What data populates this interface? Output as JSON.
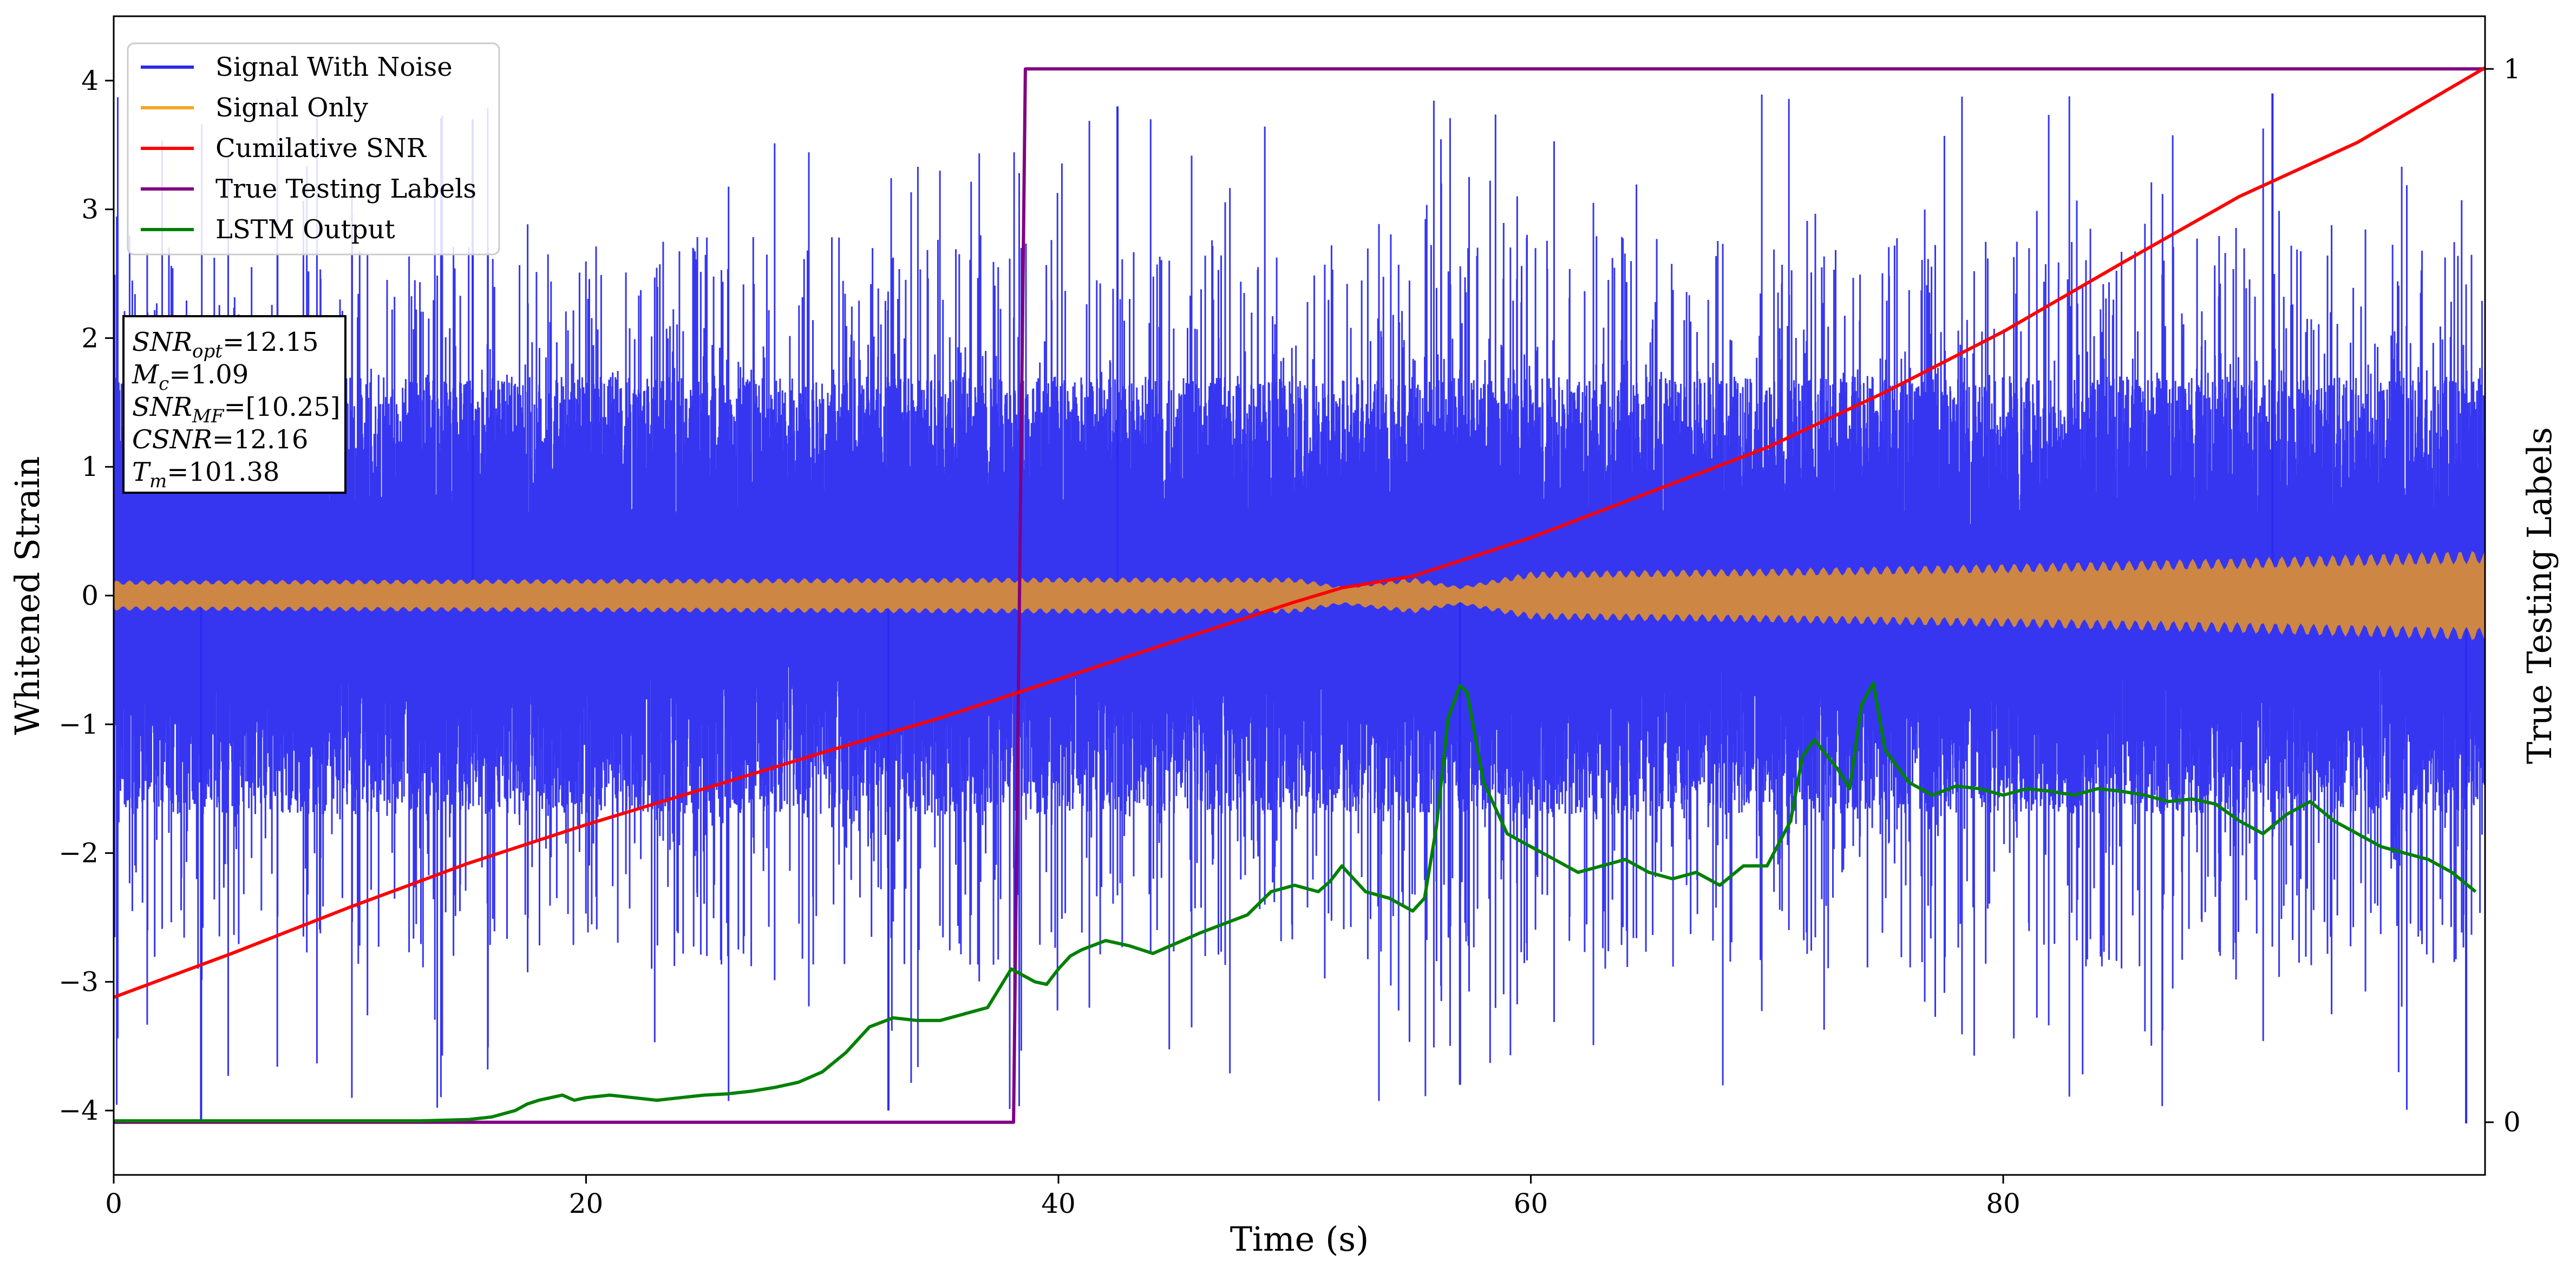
{
  "chart_data": {
    "type": "line",
    "xlabel": "Time (s)",
    "ylabel": "Whitened Strain",
    "y2label": "True Testing Labels",
    "xlim": [
      0,
      100.4
    ],
    "ylim": [
      -4.5,
      4.5
    ],
    "y2lim": [
      -0.05,
      1.05
    ],
    "x_ticks": [
      0,
      20,
      40,
      60,
      80
    ],
    "y_ticks": [
      -4,
      -3,
      -2,
      -1,
      0,
      1,
      2,
      3,
      4
    ],
    "y2_ticks": [
      0,
      1
    ],
    "grid": false,
    "legend": {
      "position": "top-left",
      "entries": [
        {
          "name": "Signal With Noise",
          "color": "#2b2bf0"
        },
        {
          "name": "Signal Only",
          "color": "#f5a623"
        },
        {
          "name": "Cumilative SNR",
          "color": "#ff0000"
        },
        {
          "name": "True Testing Labels",
          "color": "#800080"
        },
        {
          "name": "LSTM Output",
          "color": "#008000"
        }
      ]
    },
    "annotation": [
      {
        "base": "SNR",
        "sub": "opt",
        "value": "=12.15"
      },
      {
        "base": "M",
        "sub": "c",
        "value": "=1.09"
      },
      {
        "base": "SNR",
        "sub": "MF",
        "value": "=[10.25]"
      },
      {
        "base": "CSNR",
        "sub": "",
        "value": "=12.16"
      },
      {
        "base": "T",
        "sub": "m",
        "value": "=101.38"
      }
    ],
    "series": [
      {
        "name": "Signal With Noise",
        "axis": "left",
        "color": "#2b2bf0",
        "style": "noise-band",
        "x_range": [
          0,
          100.4
        ],
        "typical_range": [
          -1.7,
          1.7
        ],
        "extreme_range": [
          -4.1,
          4.0
        ]
      },
      {
        "name": "Signal Only",
        "axis": "left",
        "color": "#f5a623",
        "style": "chirp-envelope",
        "x": [
          0,
          20,
          40,
          50,
          52,
          55,
          57,
          60,
          70,
          80,
          90,
          100.4
        ],
        "amplitude": [
          0.1,
          0.11,
          0.12,
          0.12,
          0.06,
          0.12,
          0.06,
          0.16,
          0.18,
          0.21,
          0.25,
          0.3
        ]
      },
      {
        "name": "Cumilative SNR",
        "axis": "left",
        "color": "#ff0000",
        "x": [
          0,
          5,
          10,
          15,
          20,
          25,
          30,
          35,
          40,
          45,
          50,
          52,
          55,
          60,
          65,
          70,
          75,
          80,
          85,
          90,
          95,
          100.4
        ],
        "y": [
          -3.12,
          -2.78,
          -2.42,
          -2.08,
          -1.78,
          -1.5,
          -1.22,
          -0.95,
          -0.65,
          -0.35,
          -0.05,
          0.06,
          0.15,
          0.45,
          0.8,
          1.15,
          1.58,
          2.05,
          2.58,
          3.1,
          3.52,
          4.1
        ]
      },
      {
        "name": "True Testing Labels",
        "axis": "right",
        "color": "#800080",
        "x": [
          0,
          38.1,
          38.6,
          100.4
        ],
        "y": [
          0,
          0,
          1,
          1
        ]
      },
      {
        "name": "LSTM Output",
        "axis": "left",
        "color": "#008000",
        "x": [
          0,
          10,
          13,
          15,
          16,
          17,
          17.5,
          18,
          19,
          19.5,
          20,
          21,
          22,
          23,
          24,
          25,
          26,
          27,
          28,
          29,
          30,
          31,
          31.5,
          32,
          33,
          34,
          34.5,
          35,
          36,
          37,
          37.5,
          38,
          38.5,
          39,
          39.5,
          40,
          40.5,
          41,
          42,
          43,
          44,
          45,
          46,
          47,
          48,
          49,
          50,
          51,
          51.5,
          52,
          53,
          54,
          55,
          55.5,
          56,
          56.5,
          57,
          57.3,
          58,
          59,
          60,
          61,
          62,
          63,
          64,
          65,
          66,
          67,
          68,
          69,
          70,
          71,
          71.5,
          72,
          73,
          73.5,
          74,
          74.5,
          75,
          76,
          77,
          78,
          79,
          80,
          81,
          82,
          83,
          84,
          85,
          86,
          87,
          88,
          89,
          90,
          91,
          92,
          93,
          94,
          95,
          96,
          97,
          98,
          99,
          100
        ],
        "y": [
          -4.08,
          -4.08,
          -4.08,
          -4.07,
          -4.05,
          -4.0,
          -3.95,
          -3.92,
          -3.88,
          -3.92,
          -3.9,
          -3.88,
          -3.9,
          -3.92,
          -3.9,
          -3.88,
          -3.87,
          -3.85,
          -3.82,
          -3.78,
          -3.7,
          -3.55,
          -3.45,
          -3.35,
          -3.28,
          -3.3,
          -3.3,
          -3.3,
          -3.25,
          -3.2,
          -3.05,
          -2.9,
          -2.95,
          -3.0,
          -3.02,
          -2.9,
          -2.8,
          -2.75,
          -2.68,
          -2.72,
          -2.78,
          -2.7,
          -2.62,
          -2.55,
          -2.48,
          -2.3,
          -2.25,
          -2.3,
          -2.22,
          -2.1,
          -2.3,
          -2.35,
          -2.45,
          -2.35,
          -1.8,
          -0.95,
          -0.7,
          -0.75,
          -1.45,
          -1.85,
          -1.95,
          -2.05,
          -2.15,
          -2.1,
          -2.05,
          -2.15,
          -2.2,
          -2.15,
          -2.25,
          -2.1,
          -2.1,
          -1.75,
          -1.25,
          -1.12,
          -1.35,
          -1.5,
          -0.85,
          -0.68,
          -1.2,
          -1.45,
          -1.55,
          -1.48,
          -1.5,
          -1.55,
          -1.5,
          -1.52,
          -1.55,
          -1.5,
          -1.52,
          -1.55,
          -1.6,
          -1.58,
          -1.62,
          -1.75,
          -1.85,
          -1.7,
          -1.6,
          -1.75,
          -1.85,
          -1.95,
          -2.0,
          -2.05,
          -2.15,
          -2.3
        ]
      }
    ]
  }
}
